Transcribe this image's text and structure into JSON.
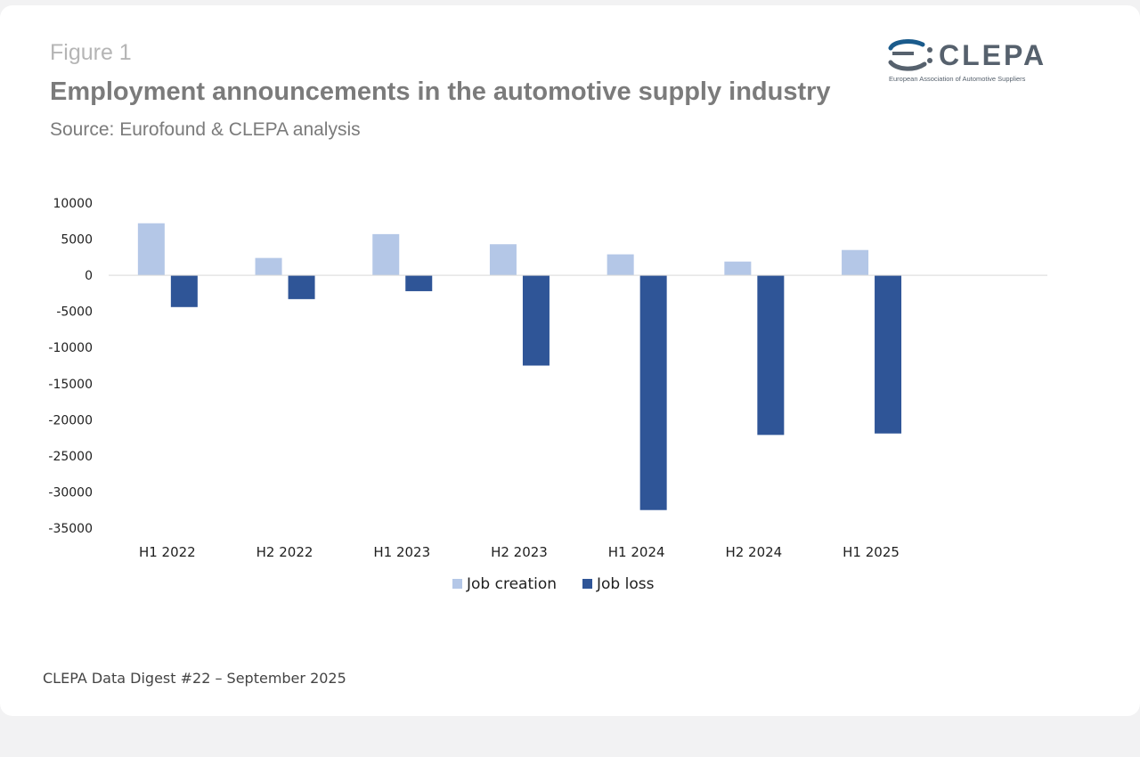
{
  "header": {
    "figure_label": "Figure 1",
    "title": "Employment announcements in the automotive supply industry",
    "source": "Source: Eurofound & CLEPA analysis"
  },
  "logo": {
    "name": "CLEPA",
    "tagline": "European Association of Automotive Suppliers"
  },
  "chart_data": {
    "type": "bar",
    "categories": [
      "H1 2022",
      "H2 2022",
      "H1 2023",
      "H2 2023",
      "H1 2024",
      "H2 2024",
      "H1 2025"
    ],
    "series": [
      {
        "name": "Job creation",
        "color": "#b4c7e7",
        "values": [
          7200,
          2400,
          5700,
          4300,
          2900,
          1900,
          3500
        ]
      },
      {
        "name": "Job loss",
        "color": "#2f5597",
        "values": [
          -4400,
          -3300,
          -2200,
          -12500,
          -32500,
          -22100,
          -21900
        ]
      }
    ],
    "yticks": [
      10000,
      5000,
      0,
      -5000,
      -10000,
      -15000,
      -20000,
      -25000,
      -30000,
      -35000
    ],
    "ylim": [
      -35000,
      10000
    ],
    "legend_position": "bottom",
    "xlabel": "",
    "ylabel": ""
  },
  "footer": {
    "text": "CLEPA Data Digest #22 – September 2025"
  }
}
